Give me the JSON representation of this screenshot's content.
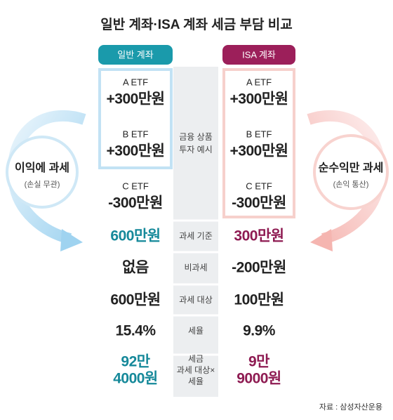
{
  "title": "일반 계좌·ISA 계좌 세금 부담 비교",
  "columns": {
    "general": "일반 계좌",
    "isa": "ISA 계좌"
  },
  "left_circle": {
    "main": "이익에 과세",
    "sub": "(손실 무관)"
  },
  "right_circle": {
    "main": "순수익만 과세",
    "sub": "(손익 통산)"
  },
  "example": {
    "label": [
      "금융 상품",
      "투자 예시"
    ],
    "general": [
      {
        "name": "A ETF",
        "value": "+300만원"
      },
      {
        "name": "B ETF",
        "value": "+300만원"
      },
      {
        "name": "C ETF",
        "value": "-300만원"
      }
    ],
    "isa": [
      {
        "name": "A ETF",
        "value": "+300만원"
      },
      {
        "name": "B ETF",
        "value": "+300만원"
      },
      {
        "name": "C ETF",
        "value": "-300만원"
      }
    ]
  },
  "rows": [
    {
      "label": [
        "과세 기준"
      ],
      "general": [
        "600만원"
      ],
      "isa": [
        "300만원"
      ]
    },
    {
      "label": [
        "비과세"
      ],
      "general": [
        "없음"
      ],
      "isa": [
        "-200만원"
      ]
    },
    {
      "label": [
        "과세 대상"
      ],
      "general": [
        "600만원"
      ],
      "isa": [
        "100만원"
      ]
    },
    {
      "label": [
        "세율"
      ],
      "general": [
        "15.4%"
      ],
      "isa": [
        "9.9%"
      ]
    },
    {
      "label": [
        "세금",
        "과세 대상×",
        "세율"
      ],
      "general": [
        "92만",
        "4000원"
      ],
      "isa": [
        "9만",
        "9000원"
      ]
    }
  ],
  "source": "자료 : 삼성자산운용"
}
